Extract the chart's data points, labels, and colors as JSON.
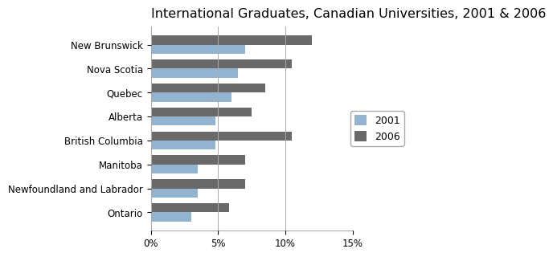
{
  "title": "International Graduates, Canadian Universities, 2001 & 2006",
  "categories": [
    "New Brunswick",
    "Nova Scotia",
    "Quebec",
    "Alberta",
    "British Columbia",
    "Manitoba",
    "Newfoundland and Labrador",
    "Ontario"
  ],
  "values_2001": [
    7.0,
    6.5,
    6.0,
    4.8,
    4.8,
    3.5,
    3.5,
    3.0
  ],
  "values_2006": [
    12.0,
    10.5,
    8.5,
    7.5,
    10.5,
    7.0,
    7.0,
    5.8
  ],
  "color_2001": "#92B4D0",
  "color_2006": "#696969",
  "legend_labels": [
    "2001",
    "2006"
  ],
  "xlim": [
    0,
    15
  ],
  "xticks": [
    0,
    5,
    10,
    15
  ],
  "xtick_labels": [
    "0%",
    "5%",
    "10%",
    "15%"
  ],
  "background_color": "#FFFFFF",
  "title_fontsize": 11.5,
  "tick_fontsize": 8.5,
  "legend_fontsize": 9,
  "bar_height": 0.38
}
